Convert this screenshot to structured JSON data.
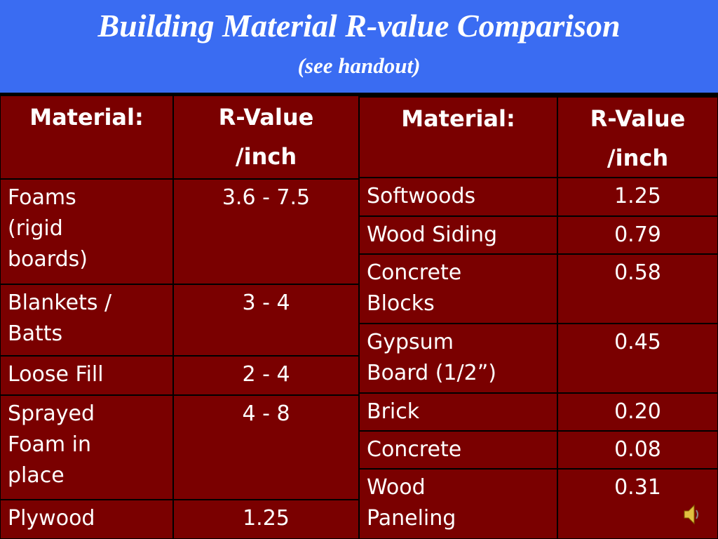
{
  "header": {
    "title": "Building Material R-value Comparison",
    "subtitle": "(see handout)"
  },
  "tables": [
    {
      "header": [
        [
          "Material:"
        ],
        [
          "R-Value",
          "/inch"
        ]
      ],
      "rows": [
        [
          [
            "Foams",
            "(rigid",
            "boards)"
          ],
          [
            "3.6 - 7.5"
          ]
        ],
        [
          [
            "Blankets /",
            "Batts"
          ],
          [
            "3 - 4"
          ]
        ],
        [
          [
            "Loose Fill"
          ],
          [
            "2 - 4"
          ]
        ],
        [
          [
            "Sprayed",
            "Foam in",
            "place"
          ],
          [
            "4 - 8"
          ]
        ],
        [
          [
            "Plywood"
          ],
          [
            "1.25"
          ]
        ]
      ]
    },
    {
      "header": [
        [
          "Material:"
        ],
        [
          "R-Value",
          "/inch"
        ]
      ],
      "rows": [
        [
          [
            "Softwoods"
          ],
          [
            "1.25"
          ]
        ],
        [
          [
            "Wood Siding"
          ],
          [
            "0.79"
          ]
        ],
        [
          [
            "Concrete",
            "Blocks"
          ],
          [
            "0.58"
          ]
        ],
        [
          [
            "Gypsum",
            "Board (1/2”)"
          ],
          [
            "0.45"
          ]
        ],
        [
          [
            "Brick"
          ],
          [
            "0.20"
          ]
        ],
        [
          [
            "Concrete"
          ],
          [
            "0.08"
          ]
        ],
        [
          [
            "Wood",
            "Paneling"
          ],
          [
            "0.31"
          ]
        ]
      ]
    }
  ]
}
